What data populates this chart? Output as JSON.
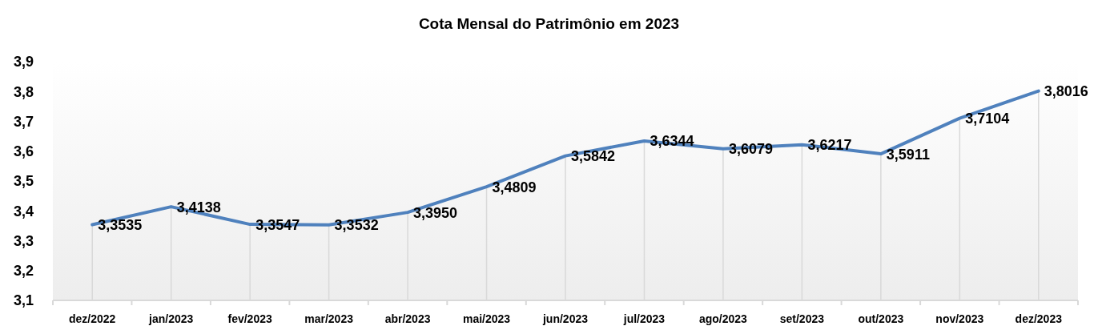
{
  "chart_data": {
    "type": "line",
    "title": "Cota Mensal do Patrimônio em 2023",
    "categories": [
      "dez/2022",
      "jan/2023",
      "fev/2023",
      "mar/2023",
      "abr/2023",
      "mai/2023",
      "jun/2023",
      "jul/2023",
      "ago/2023",
      "set/2023",
      "out/2023",
      "nov/2023",
      "dez/2023"
    ],
    "values": [
      3.3535,
      3.4138,
      3.3547,
      3.3532,
      3.395,
      3.4809,
      3.5842,
      3.6344,
      3.6079,
      3.6217,
      3.5911,
      3.7104,
      3.8016
    ],
    "value_labels": [
      "3,3535",
      "3,4138",
      "3,3547",
      "3,3532",
      "3,3950",
      "3,4809",
      "3,5842",
      "3,6344",
      "3,6079",
      "3,6217",
      "3,5911",
      "3,7104",
      "3,8016"
    ],
    "color": "#4f81bd",
    "ylim": [
      3.1,
      3.9
    ],
    "yticks": [
      {
        "value": 3.1,
        "label": "3,1"
      },
      {
        "value": 3.2,
        "label": "3,2"
      },
      {
        "value": 3.3,
        "label": "3,3"
      },
      {
        "value": 3.4,
        "label": "3,4"
      },
      {
        "value": 3.5,
        "label": "3,5"
      },
      {
        "value": 3.6,
        "label": "3,6"
      },
      {
        "value": 3.7,
        "label": "3,7"
      },
      {
        "value": 3.8,
        "label": "3,8"
      },
      {
        "value": 3.9,
        "label": "3,9"
      }
    ],
    "grid": "x"
  }
}
